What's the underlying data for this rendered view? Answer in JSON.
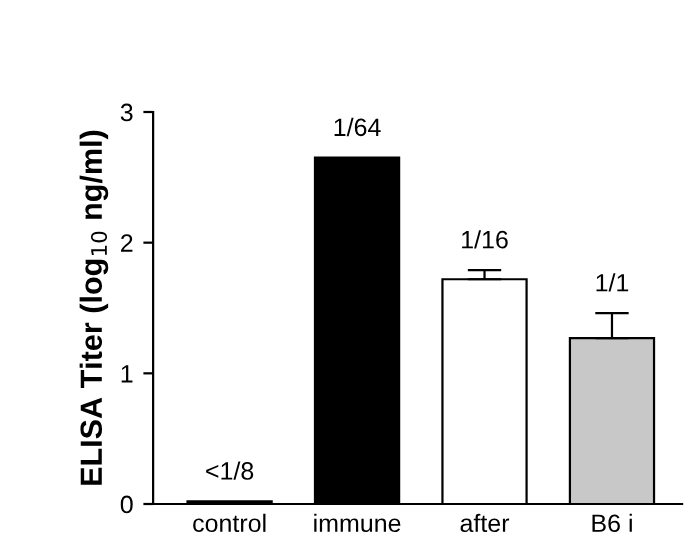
{
  "chart_data": {
    "type": "bar",
    "ylabel": "ELISA Titer (log$_{10}$ ng/ml)",
    "categories": [
      "control",
      "immune",
      "after",
      "B6 i"
    ],
    "values": [
      0.02,
      2.65,
      1.72,
      1.27
    ],
    "colors": [
      "#000000",
      "#000000",
      "#ffffff",
      "#c8c8c8"
    ],
    "errors": [
      null,
      null,
      [
        1.72,
        1.79
      ],
      [
        1.27,
        1.46
      ]
    ],
    "annotations": [
      {
        "text": "<1/8",
        "x": "control",
        "y": 0.02
      },
      {
        "text": "1/64",
        "x": "immune",
        "y": 2.65
      },
      {
        "text": "1/16",
        "x": "after",
        "y": 1.79
      },
      {
        "text": "1/1",
        "x": "B6 i",
        "y": 1.46
      }
    ],
    "ylim": [
      0,
      3
    ],
    "yticks": [
      0,
      1,
      2,
      3
    ],
    "grid": false
  }
}
